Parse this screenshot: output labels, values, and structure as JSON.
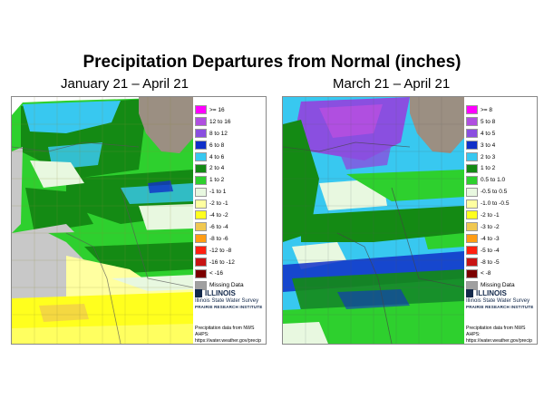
{
  "title": "Precipitation Departures from Normal (inches)",
  "colors": {
    "background_white": "#ffffff",
    "lake": "#9b8f82",
    "county_line": "#8a8a3a"
  },
  "panels": [
    {
      "id": "left",
      "title": "January 21 – April 21",
      "legend": [
        {
          "label": ">= 16",
          "color": "#ff00ff"
        },
        {
          "label": "12 to 16",
          "color": "#b04fe0"
        },
        {
          "label": "8 to 12",
          "color": "#8a4fe0"
        },
        {
          "label": "6 to 8",
          "color": "#1030c8"
        },
        {
          "label": "4 to 6",
          "color": "#38c8f0"
        },
        {
          "label": "2 to 4",
          "color": "#148a14"
        },
        {
          "label": "1 to 2",
          "color": "#2ed02e"
        },
        {
          "label": "-1 to 1",
          "color": "#e8f8e0"
        },
        {
          "label": "-2 to -1",
          "color": "#ffffa0"
        },
        {
          "label": "-4 to -2",
          "color": "#ffff1e"
        },
        {
          "label": "-6 to -4",
          "color": "#f0c850"
        },
        {
          "label": "-8 to -6",
          "color": "#ff9c14"
        },
        {
          "label": "-12 to -8",
          "color": "#ff2010"
        },
        {
          "label": "-16 to -12",
          "color": "#c81414"
        },
        {
          "label": "< -16",
          "color": "#7c0000"
        },
        {
          "label": "Missing Data",
          "color": "#a0a0a0"
        }
      ],
      "attribution": {
        "logo_text": "ILLINOIS",
        "survey": "Illinois State Water Survey",
        "institute": "PRAIRIE RESEARCH INSTITUTE",
        "source_line1": "Precipitation data from NWS AHPS:",
        "source_line2": "https://water.weather.gov/precip"
      }
    },
    {
      "id": "right",
      "title": "March 21 – April 21",
      "legend": [
        {
          "label": ">= 8",
          "color": "#ff00ff"
        },
        {
          "label": "5 to 8",
          "color": "#b04fe0"
        },
        {
          "label": "4 to 5",
          "color": "#8a4fe0"
        },
        {
          "label": "3 to 4",
          "color": "#1030c8"
        },
        {
          "label": "2 to 3",
          "color": "#38c8f0"
        },
        {
          "label": "1 to 2",
          "color": "#148a14"
        },
        {
          "label": "0.5 to 1.0",
          "color": "#2ed02e"
        },
        {
          "label": "-0.5 to 0.5",
          "color": "#e8f8e0"
        },
        {
          "label": "-1.0 to -0.5",
          "color": "#ffffa0"
        },
        {
          "label": "-2 to -1",
          "color": "#ffff1e"
        },
        {
          "label": "-3 to -2",
          "color": "#f0c850"
        },
        {
          "label": "-4 to -3",
          "color": "#ff9c14"
        },
        {
          "label": "-5 to -4",
          "color": "#ff2010"
        },
        {
          "label": "-8 to -5",
          "color": "#c81414"
        },
        {
          "label": "< -8",
          "color": "#7c0000"
        },
        {
          "label": "Missing Data",
          "color": "#a0a0a0"
        }
      ],
      "attribution": {
        "logo_text": "ILLINOIS",
        "survey": "Illinois State Water Survey",
        "institute": "PRAIRIE RESEARCH INSTITUTE",
        "source_line1": "Precipitation data from NWS AHPS:",
        "source_line2": "https://water.weather.gov/precip"
      }
    }
  ]
}
